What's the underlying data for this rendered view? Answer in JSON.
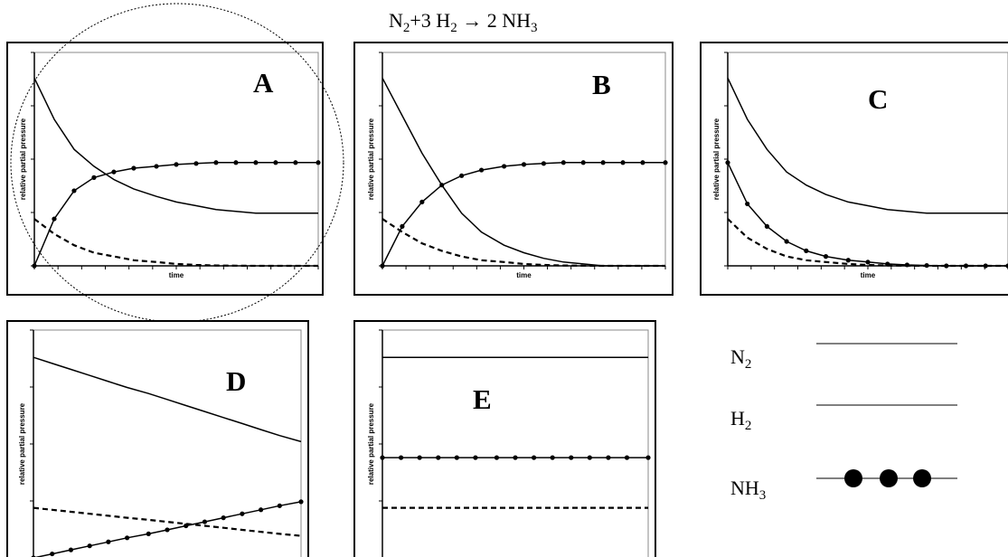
{
  "equation": {
    "parts": [
      {
        "t": "N",
        "sub": false
      },
      {
        "t": "2",
        "sub": true
      },
      {
        "t": "+3 H",
        "sub": false
      },
      {
        "t": "2",
        "sub": true
      },
      {
        "t": " → 2 NH",
        "sub": false
      },
      {
        "t": "3",
        "sub": true
      }
    ]
  },
  "axis_labels": {
    "x": "time",
    "y": "relative partial pressure"
  },
  "legend": {
    "items": [
      {
        "key": "N2",
        "base": "N",
        "sub": "2",
        "style": "thin-line"
      },
      {
        "key": "H2",
        "base": "H",
        "sub": "2",
        "style": "thin-line"
      },
      {
        "key": "NH3",
        "base": "NH",
        "sub": "3",
        "style": "line-with-dots"
      }
    ]
  },
  "chart_data": [
    {
      "panel": "A",
      "type": "line",
      "xlabel": "time",
      "ylabel": "relative partial pressure",
      "circled": true,
      "x": [
        0,
        0.07,
        0.14,
        0.21,
        0.28,
        0.35,
        0.43,
        0.5,
        0.57,
        0.64,
        0.71,
        0.78,
        0.85,
        0.92,
        1.0
      ],
      "series": [
        {
          "key": "N2",
          "style": "solid",
          "values": [
            1.0,
            0.78,
            0.62,
            0.53,
            0.46,
            0.41,
            0.37,
            0.34,
            0.32,
            0.3,
            0.29,
            0.28,
            0.28,
            0.28,
            0.28
          ]
        },
        {
          "key": "H2",
          "style": "dashed",
          "values": [
            0.25,
            0.17,
            0.11,
            0.07,
            0.05,
            0.03,
            0.02,
            0.01,
            0.005,
            0.002,
            0.001,
            0.0,
            0.0,
            0.0,
            0.0
          ]
        },
        {
          "key": "NH3",
          "style": "dotted-marker",
          "values": [
            0.0,
            0.25,
            0.4,
            0.47,
            0.5,
            0.52,
            0.53,
            0.54,
            0.545,
            0.55,
            0.55,
            0.55,
            0.55,
            0.55,
            0.55
          ]
        }
      ]
    },
    {
      "panel": "B",
      "type": "line",
      "xlabel": "time",
      "ylabel": "relative partial pressure",
      "circled": false,
      "x": [
        0,
        0.07,
        0.14,
        0.21,
        0.28,
        0.35,
        0.43,
        0.5,
        0.57,
        0.64,
        0.71,
        0.78,
        0.85,
        0.92,
        1.0
      ],
      "series": [
        {
          "key": "N2",
          "style": "solid",
          "values": [
            1.0,
            0.8,
            0.6,
            0.43,
            0.28,
            0.18,
            0.11,
            0.07,
            0.04,
            0.02,
            0.01,
            0.0,
            0.0,
            0.0,
            0.0
          ]
        },
        {
          "key": "H2",
          "style": "dashed",
          "values": [
            0.25,
            0.18,
            0.12,
            0.08,
            0.05,
            0.03,
            0.02,
            0.01,
            0.005,
            0.002,
            0.001,
            0.0,
            0.0,
            0.0,
            0.0
          ]
        },
        {
          "key": "NH3",
          "style": "dotted-marker",
          "values": [
            0.0,
            0.21,
            0.34,
            0.43,
            0.48,
            0.51,
            0.53,
            0.54,
            0.545,
            0.55,
            0.55,
            0.55,
            0.55,
            0.55,
            0.55
          ]
        }
      ]
    },
    {
      "panel": "C",
      "type": "line",
      "xlabel": "time",
      "ylabel": "relative partial pressure",
      "circled": false,
      "x": [
        0,
        0.07,
        0.14,
        0.21,
        0.28,
        0.35,
        0.43,
        0.5,
        0.57,
        0.64,
        0.71,
        0.78,
        0.85,
        0.92,
        1.0
      ],
      "series": [
        {
          "key": "N2",
          "style": "solid",
          "values": [
            1.0,
            0.78,
            0.62,
            0.5,
            0.43,
            0.38,
            0.34,
            0.32,
            0.3,
            0.29,
            0.28,
            0.28,
            0.28,
            0.28,
            0.28
          ]
        },
        {
          "key": "H2",
          "style": "dashed",
          "values": [
            0.25,
            0.15,
            0.09,
            0.05,
            0.03,
            0.02,
            0.01,
            0.005,
            0.002,
            0.001,
            0.0,
            0.0,
            0.0,
            0.0,
            0.0
          ]
        },
        {
          "key": "NH3",
          "style": "dotted-marker",
          "values": [
            0.55,
            0.33,
            0.21,
            0.13,
            0.08,
            0.05,
            0.03,
            0.02,
            0.01,
            0.005,
            0.002,
            0.0,
            0.0,
            0.0,
            0.0
          ]
        }
      ]
    },
    {
      "panel": "D",
      "type": "line",
      "xlabel": "time",
      "ylabel": "relative partial pressure",
      "circled": false,
      "x": [
        0,
        0.07,
        0.14,
        0.21,
        0.28,
        0.35,
        0.43,
        0.5,
        0.57,
        0.64,
        0.71,
        0.78,
        0.85,
        0.92,
        1.0
      ],
      "series": [
        {
          "key": "N2",
          "style": "solid",
          "values": [
            1.0,
            0.97,
            0.94,
            0.91,
            0.88,
            0.85,
            0.82,
            0.79,
            0.76,
            0.73,
            0.7,
            0.67,
            0.64,
            0.61,
            0.58
          ]
        },
        {
          "key": "H2",
          "style": "dashed",
          "values": [
            0.25,
            0.24,
            0.23,
            0.22,
            0.21,
            0.2,
            0.19,
            0.18,
            0.17,
            0.16,
            0.15,
            0.14,
            0.13,
            0.12,
            0.11
          ]
        },
        {
          "key": "NH3",
          "style": "dotted-marker",
          "values": [
            0.0,
            0.02,
            0.04,
            0.06,
            0.08,
            0.1,
            0.12,
            0.14,
            0.16,
            0.18,
            0.2,
            0.22,
            0.24,
            0.26,
            0.28
          ]
        }
      ]
    },
    {
      "panel": "E",
      "type": "line",
      "xlabel": "time",
      "ylabel": "relative partial pressure",
      "circled": false,
      "x": [
        0,
        0.07,
        0.14,
        0.21,
        0.28,
        0.35,
        0.43,
        0.5,
        0.57,
        0.64,
        0.71,
        0.78,
        0.85,
        0.92,
        1.0
      ],
      "series": [
        {
          "key": "N2",
          "style": "solid",
          "values": [
            1.0,
            1.0,
            1.0,
            1.0,
            1.0,
            1.0,
            1.0,
            1.0,
            1.0,
            1.0,
            1.0,
            1.0,
            1.0,
            1.0,
            1.0
          ]
        },
        {
          "key": "H2",
          "style": "dashed",
          "values": [
            0.25,
            0.25,
            0.25,
            0.25,
            0.25,
            0.25,
            0.25,
            0.25,
            0.25,
            0.25,
            0.25,
            0.25,
            0.25,
            0.25,
            0.25
          ]
        },
        {
          "key": "NH3",
          "style": "dotted-marker",
          "values": [
            0.5,
            0.5,
            0.5,
            0.5,
            0.5,
            0.5,
            0.5,
            0.5,
            0.5,
            0.5,
            0.5,
            0.5,
            0.5,
            0.5,
            0.5
          ]
        }
      ]
    }
  ]
}
